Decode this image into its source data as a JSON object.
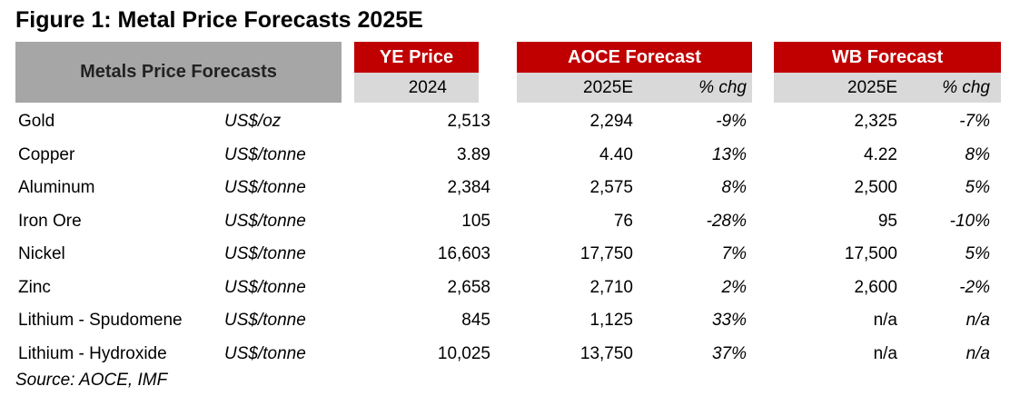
{
  "title": "Figure 1: Metal Price Forecasts 2025E",
  "table": {
    "stub_header": "Metals Price Forecasts",
    "groups": [
      {
        "label": "YE Price",
        "columns": [
          "2024"
        ]
      },
      {
        "label": "AOCE Forecast",
        "columns": [
          "2025E",
          "% chg"
        ]
      },
      {
        "label": "WB Forecast",
        "columns": [
          "2025E",
          "% chg"
        ]
      }
    ],
    "rows": [
      [
        "Gold",
        "US$/oz",
        "2,513",
        "2,294",
        "-9%",
        "2,325",
        "-7%"
      ],
      [
        "Copper",
        "US$/tonne",
        "3.89",
        "4.40",
        "13%",
        "4.22",
        "8%"
      ],
      [
        "Aluminum",
        "US$/tonne",
        "2,384",
        "2,575",
        "8%",
        "2,500",
        "5%"
      ],
      [
        "Iron Ore",
        "US$/tonne",
        "105",
        "76",
        "-28%",
        "95",
        "-10%"
      ],
      [
        "Nickel",
        "US$/tonne",
        "16,603",
        "17,750",
        "7%",
        "17,500",
        "5%"
      ],
      [
        "Zinc",
        "US$/tonne",
        "2,658",
        "2,710",
        "2%",
        "2,600",
        "-2%"
      ],
      [
        "Lithium - Spudomene",
        "US$/tonne",
        "845",
        "1,125",
        "33%",
        "n/a",
        "n/a"
      ],
      [
        "Lithium - Hydroxide",
        "US$/tonne",
        "10,025",
        "13,750",
        "37%",
        "n/a",
        "n/a"
      ]
    ]
  },
  "source": "Source: AOCE, IMF"
}
